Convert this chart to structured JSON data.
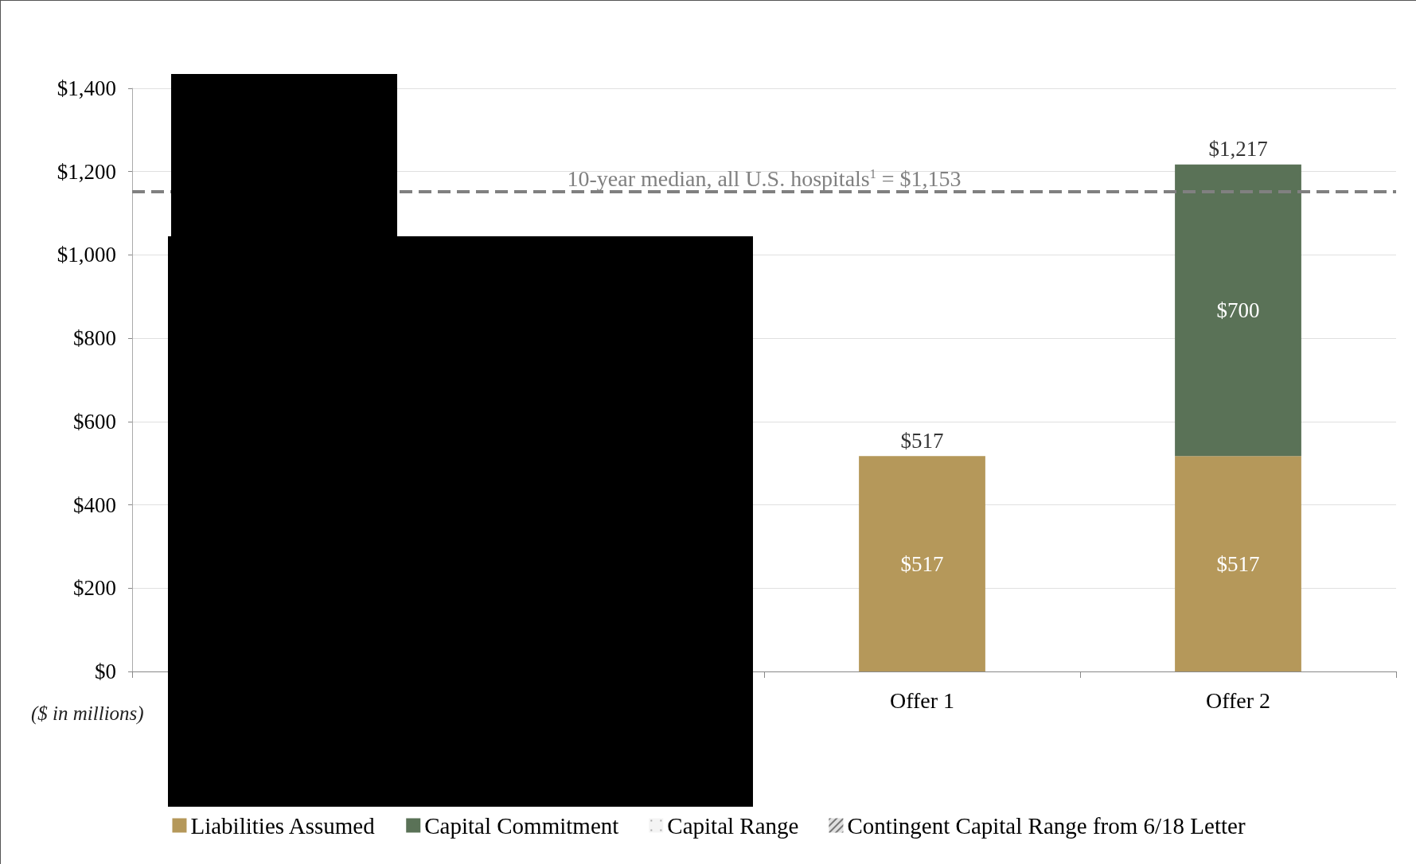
{
  "chart_data": {
    "type": "bar",
    "stacked": true,
    "categories": [
      null,
      null,
      "Offer 1",
      "Offer 2"
    ],
    "series": [
      {
        "name": "Liabilities Assumed",
        "color": "#b5985a",
        "values": [
          null,
          null,
          517,
          517
        ],
        "value_labels": [
          null,
          null,
          "$517",
          "$517"
        ]
      },
      {
        "name": "Capital Commitment",
        "color": "#5a7257",
        "values": [
          null,
          null,
          null,
          700
        ],
        "value_labels": [
          null,
          null,
          null,
          "$700"
        ]
      },
      {
        "name": "Capital Range",
        "color": "#f4f4f4",
        "values": [
          null,
          null,
          null,
          null
        ]
      },
      {
        "name": "Contingent Capital Range from 6/18 Letter",
        "color": "#e0e0e0",
        "values": [
          null,
          null,
          null,
          null
        ]
      }
    ],
    "totals": [
      null,
      null,
      "$517",
      "$1,217"
    ],
    "ylim": [
      0,
      1400
    ],
    "yticks": [
      {
        "value": 0,
        "label": "$0"
      },
      {
        "value": 200,
        "label": "$200"
      },
      {
        "value": 400,
        "label": "$400"
      },
      {
        "value": 600,
        "label": "$600"
      },
      {
        "value": 800,
        "label": "$800"
      },
      {
        "value": 1000,
        "label": "$1,000"
      },
      {
        "value": 1200,
        "label": "$1,200"
      },
      {
        "value": 1400,
        "label": "$1,400"
      }
    ],
    "grid": "y",
    "legend": "bottom",
    "ref_lines": [
      {
        "axis": "y",
        "value": 1153,
        "label": "10-year median, all U.S. hospitals$^{1}$ = $1,153",
        "color": "#808080",
        "line_style": "dashed"
      }
    ],
    "annotations": [
      "($ in millions)"
    ]
  }
}
